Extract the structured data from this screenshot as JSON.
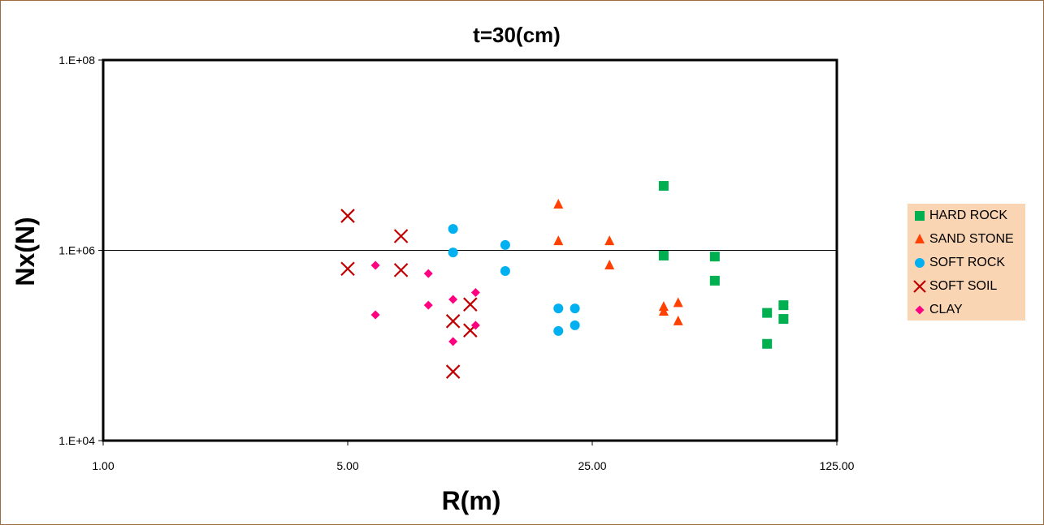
{
  "chart_data": {
    "type": "scatter",
    "title": "t=30(cm)",
    "xlabel": "R(m)",
    "ylabel": "Nx(N)",
    "xscale": "log",
    "yscale": "log",
    "xlim": [
      1,
      125
    ],
    "ylim": [
      10000,
      100000000
    ],
    "xticks": [
      1,
      5,
      25,
      125
    ],
    "xtick_labels": [
      "1.00",
      "5.00",
      "25.00",
      "125.00"
    ],
    "yticks": [
      10000,
      1000000,
      100000000
    ],
    "ytick_labels": [
      "1.E+04",
      "1.E+06",
      "1.E+08"
    ],
    "grid": "horizontal at 1.E+06",
    "legend_position": "right",
    "series": [
      {
        "name": "HARD ROCK",
        "marker": "square",
        "color": "#00b050",
        "points": [
          [
            40,
            4760000
          ],
          [
            40,
            880000
          ],
          [
            56,
            860000
          ],
          [
            56,
            480000
          ],
          [
            79,
            220000
          ],
          [
            88,
            265000
          ],
          [
            88,
            190000
          ],
          [
            79,
            104000
          ]
        ]
      },
      {
        "name": "SAND STONE",
        "marker": "triangle",
        "color": "#ff4000",
        "points": [
          [
            20,
            3030000
          ],
          [
            20,
            1250000
          ],
          [
            28,
            1250000
          ],
          [
            28,
            695000
          ],
          [
            40,
            255000
          ],
          [
            40,
            227000
          ],
          [
            44,
            280000
          ],
          [
            44,
            180000
          ]
        ]
      },
      {
        "name": "SOFT ROCK",
        "marker": "circle",
        "color": "#00b0f0",
        "points": [
          [
            10,
            1680000
          ],
          [
            10,
            950000
          ],
          [
            14.1,
            1140000
          ],
          [
            14.1,
            606000
          ],
          [
            20,
            245000
          ],
          [
            22.3,
            245000
          ],
          [
            20,
            142000
          ],
          [
            22.3,
            163000
          ]
        ]
      },
      {
        "name": "SOFT SOIL",
        "marker": "x",
        "color": "#c00000",
        "points": [
          [
            5,
            2300000
          ],
          [
            7.1,
            1410000
          ],
          [
            5,
            640000
          ],
          [
            7.1,
            620000
          ],
          [
            10,
            180000
          ],
          [
            11.2,
            270000
          ],
          [
            11.2,
            144000
          ],
          [
            10,
            53000
          ]
        ]
      },
      {
        "name": "CLAY",
        "marker": "diamond",
        "color": "#ff0080",
        "points": [
          [
            6,
            695000
          ],
          [
            6,
            210000
          ],
          [
            8.5,
            570000
          ],
          [
            8.5,
            265000
          ],
          [
            10,
            305000
          ],
          [
            11.6,
            360000
          ],
          [
            11.6,
            163000
          ],
          [
            10,
            110000
          ]
        ]
      }
    ]
  }
}
